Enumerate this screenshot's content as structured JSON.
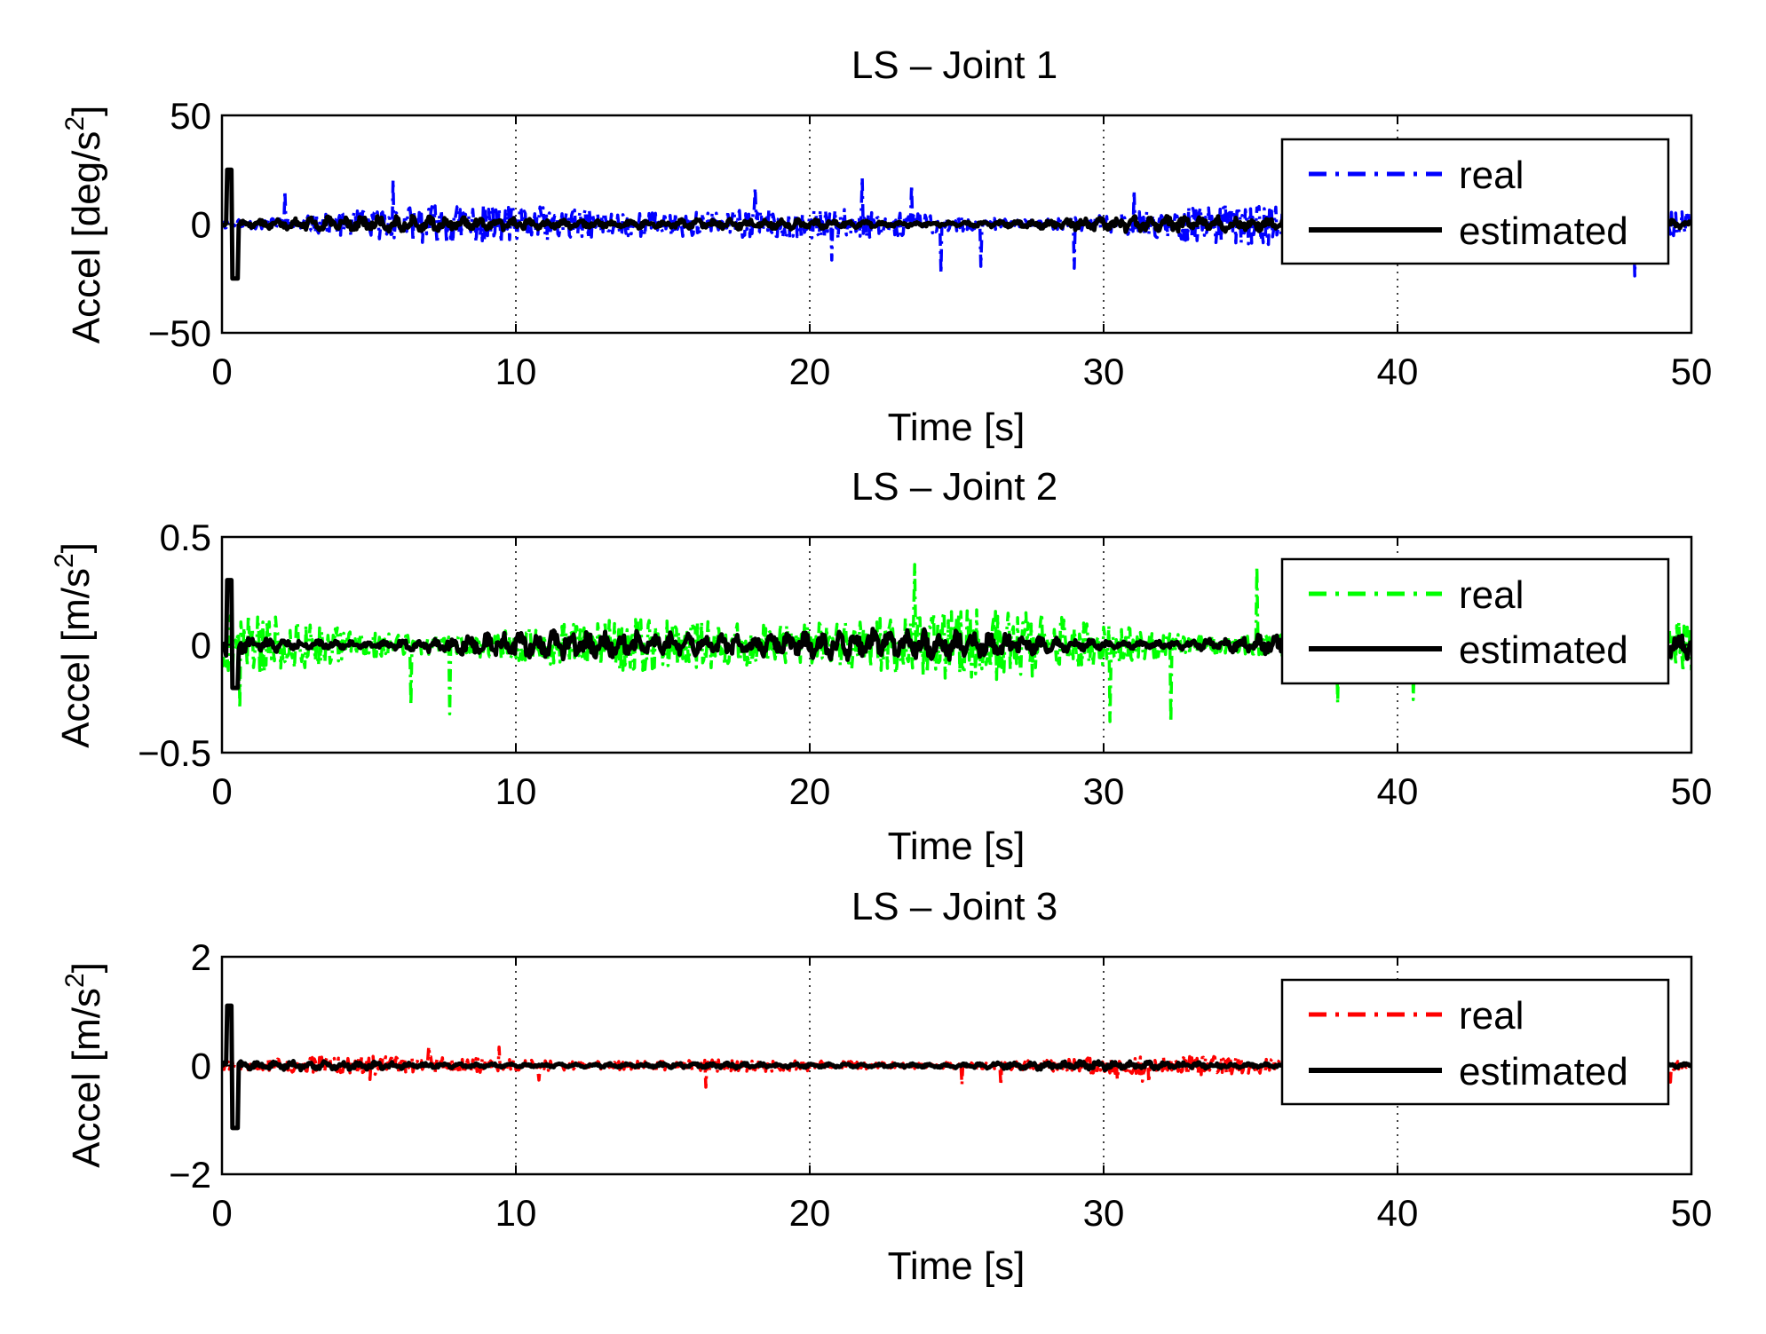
{
  "chart_data": [
    {
      "type": "line",
      "title": "LS – Joint 1",
      "xlabel": "Time [s]",
      "ylabel_main": "Accel [deg/s",
      "ylabel_sup": "2",
      "ylabel_close": "]",
      "xlim": [
        0,
        50
      ],
      "ylim": [
        -50,
        50
      ],
      "xticks": [
        0,
        10,
        20,
        30,
        40,
        50
      ],
      "yticks": [
        -50,
        0,
        50
      ],
      "ytick_labels": [
        "−50",
        "0",
        "50"
      ],
      "grid": "x-dotted",
      "legend": "top-right",
      "series": [
        {
          "name": "real",
          "style": "dash-dot",
          "color": "#0000ff",
          "amplitude": 9,
          "spike": 12,
          "spike_amp": 24,
          "seed": 11
        },
        {
          "name": "estimated",
          "style": "solid",
          "color": "#000000",
          "amplitude": 3.2,
          "spike": 0,
          "spike_amp": 0,
          "seed": 12
        }
      ],
      "transient": {
        "t": 0.3,
        "peak": 25,
        "trough": -25
      }
    },
    {
      "type": "line",
      "title": "LS – Joint 2",
      "xlabel": "Time [s]",
      "ylabel_main": "Accel [m/s",
      "ylabel_sup": "2",
      "ylabel_close": "]",
      "xlim": [
        0,
        50
      ],
      "ylim": [
        -0.5,
        0.5
      ],
      "xticks": [
        0,
        10,
        20,
        30,
        40,
        50
      ],
      "yticks": [
        -0.5,
        0,
        0.5
      ],
      "ytick_labels": [
        "−0.5",
        "0",
        "0.5"
      ],
      "grid": "x-dotted",
      "legend": "top-right",
      "series": [
        {
          "name": "real",
          "style": "dash-dot",
          "color": "#00ff00",
          "amplitude": 0.16,
          "spike": 10,
          "spike_amp": 0.38,
          "seed": 21
        },
        {
          "name": "estimated",
          "style": "solid",
          "color": "#000000",
          "amplitude": 0.07,
          "spike": 0,
          "spike_amp": 0,
          "seed": 22
        }
      ],
      "transient": {
        "t": 0.3,
        "peak": 0.3,
        "trough": -0.2
      }
    },
    {
      "type": "line",
      "title": "LS – Joint 3",
      "xlabel": "Time [s]",
      "ylabel_main": "Accel [m/s",
      "ylabel_sup": "2",
      "ylabel_close": "]",
      "xlim": [
        0,
        50
      ],
      "ylim": [
        -2,
        2
      ],
      "xticks": [
        0,
        10,
        20,
        30,
        40,
        50
      ],
      "yticks": [
        -2,
        0,
        2
      ],
      "ytick_labels": [
        "−2",
        "0",
        "2"
      ],
      "grid": "x-dotted",
      "legend": "top-right",
      "series": [
        {
          "name": "real",
          "style": "dash-dot",
          "color": "#ff0000",
          "amplitude": 0.16,
          "spike": 14,
          "spike_amp": 0.4,
          "seed": 31
        },
        {
          "name": "estimated",
          "style": "solid",
          "color": "#000000",
          "amplitude": 0.07,
          "spike": 0,
          "spike_amp": 0,
          "seed": 32
        }
      ],
      "transient": {
        "t": 0.3,
        "peak": 1.1,
        "trough": -1.15
      }
    }
  ]
}
